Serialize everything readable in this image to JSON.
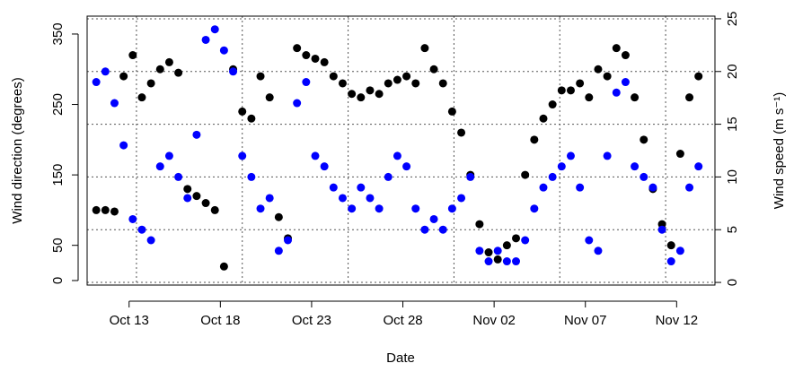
{
  "chart_data": {
    "type": "scatter",
    "xlabel": "Date",
    "ylabel": "Wind direction (degrees)",
    "y2label": "Wind speed (m s⁻¹)",
    "x": [
      -1.8,
      -1.3,
      -0.8,
      -0.3,
      0.2,
      0.7,
      1.2,
      1.7,
      2.2,
      2.7,
      3.2,
      3.7,
      4.2,
      4.7,
      5.2,
      5.7,
      6.2,
      6.7,
      7.2,
      7.7,
      8.2,
      8.7,
      9.2,
      9.7,
      10.2,
      10.7,
      11.2,
      11.7,
      12.2,
      12.7,
      13.2,
      13.7,
      14.2,
      14.7,
      15.2,
      15.7,
      16.2,
      16.7,
      17.2,
      17.7,
      18.2,
      18.7,
      19.2,
      19.7,
      20.2,
      20.7,
      21.2,
      21.7,
      22.2,
      22.7,
      23.2,
      23.7,
      24.2,
      24.7,
      25.2,
      25.7,
      26.2,
      26.7,
      27.2,
      27.7,
      28.2,
      28.7,
      29.2,
      29.7,
      30.2,
      30.7,
      31.2
    ],
    "series": [
      {
        "color": "#000000",
        "values": [
          100,
          100,
          98,
          290,
          320,
          260,
          280,
          300,
          310,
          295,
          130,
          120,
          110,
          100,
          20,
          300,
          240,
          230,
          290,
          260,
          90,
          60,
          330,
          320,
          315,
          310,
          290,
          280,
          265,
          260,
          270,
          265,
          280,
          285,
          290,
          280,
          330,
          300,
          280,
          240,
          210,
          150,
          80,
          40,
          30,
          50,
          60,
          150,
          200,
          230,
          250,
          270,
          270,
          280,
          260,
          300,
          290,
          330,
          320,
          260,
          200,
          130,
          80,
          50,
          180,
          260,
          290
        ]
      },
      {
        "color": "#0000ff",
        "axis": "y2",
        "values": [
          19,
          20,
          17,
          13,
          6,
          5,
          4,
          11,
          12,
          10,
          8,
          14,
          23,
          24,
          22,
          20,
          12,
          10,
          7,
          8,
          3,
          4,
          17,
          19,
          12,
          11,
          9,
          8,
          7,
          9,
          8,
          7,
          10,
          12,
          11,
          7,
          5,
          6,
          5,
          7,
          8,
          10,
          3,
          2,
          3,
          2,
          2,
          4,
          7,
          9,
          10,
          11,
          12,
          9,
          4,
          3,
          12,
          18,
          19,
          11,
          10,
          9,
          5,
          2,
          3,
          9,
          11
        ]
      }
    ],
    "xlim": [
      -2.3,
      32.1
    ],
    "xticks": [
      {
        "value": 0,
        "label": "Oct 13"
      },
      {
        "value": 5,
        "label": "Oct 18"
      },
      {
        "value": 10,
        "label": "Oct 23"
      },
      {
        "value": 15,
        "label": "Oct 28"
      },
      {
        "value": 20,
        "label": "Nov 02"
      },
      {
        "value": 25,
        "label": "Nov 07"
      },
      {
        "value": 30,
        "label": "Nov 12"
      }
    ],
    "ylim": [
      -6.4,
      375.4
    ],
    "yticks": [
      0,
      50,
      150,
      250,
      350
    ],
    "y2lim": [
      -0.25,
      25.25
    ],
    "y2ticks": [
      0,
      5,
      10,
      15,
      20,
      25
    ],
    "grid": true
  }
}
